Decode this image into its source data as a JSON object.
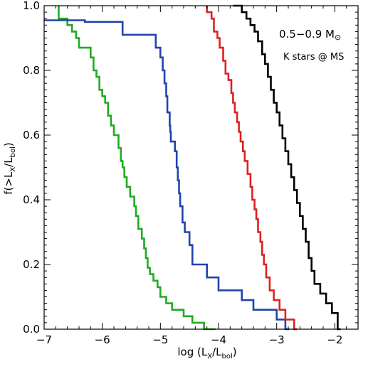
{
  "chart_data": {
    "type": "line",
    "title": "",
    "xlabel": {
      "prefix": "log (L",
      "sub1": "X",
      "mid": "/L",
      "sub2": "bol",
      "suffix": ")"
    },
    "ylabel": {
      "prefix": "f(>L",
      "sub1": "X",
      "mid": "/L",
      "sub2": "bol",
      "suffix": ")"
    },
    "xlim": [
      -7.0,
      -1.6
    ],
    "ylim": [
      0.0,
      1.0
    ],
    "x_ticks": [
      -7,
      -6,
      -5,
      -4,
      -3,
      -2
    ],
    "x_tick_labels": [
      "−7",
      "−6",
      "−5",
      "−4",
      "−3",
      "−2"
    ],
    "y_ticks": [
      0.0,
      0.2,
      0.4,
      0.6,
      0.8,
      1.0
    ],
    "y_tick_labels": [
      "0.0",
      "0.2",
      "0.4",
      "0.6",
      "0.8",
      "1.0"
    ],
    "grid": false,
    "annotations": {
      "mass_range": "0.5−0.9 M",
      "sun_symbol": "⊙",
      "stage": "K stars @ MS"
    },
    "series": [
      {
        "color": "#22aa22",
        "points": [
          [
            -6.75,
            1.0
          ],
          [
            -6.75,
            0.96
          ],
          [
            -6.6,
            0.96
          ],
          [
            -6.6,
            0.94
          ],
          [
            -6.52,
            0.94
          ],
          [
            -6.52,
            0.92
          ],
          [
            -6.45,
            0.92
          ],
          [
            -6.45,
            0.9
          ],
          [
            -6.4,
            0.9
          ],
          [
            -6.4,
            0.87
          ],
          [
            -6.2,
            0.87
          ],
          [
            -6.2,
            0.84
          ],
          [
            -6.15,
            0.84
          ],
          [
            -6.15,
            0.8
          ],
          [
            -6.1,
            0.8
          ],
          [
            -6.1,
            0.78
          ],
          [
            -6.05,
            0.78
          ],
          [
            -6.05,
            0.74
          ],
          [
            -6.0,
            0.74
          ],
          [
            -6.0,
            0.72
          ],
          [
            -5.95,
            0.72
          ],
          [
            -5.95,
            0.7
          ],
          [
            -5.9,
            0.7
          ],
          [
            -5.9,
            0.66
          ],
          [
            -5.85,
            0.66
          ],
          [
            -5.85,
            0.63
          ],
          [
            -5.8,
            0.63
          ],
          [
            -5.8,
            0.6
          ],
          [
            -5.72,
            0.6
          ],
          [
            -5.72,
            0.58
          ],
          [
            -5.72,
            0.56
          ],
          [
            -5.68,
            0.56
          ],
          [
            -5.68,
            0.52
          ],
          [
            -5.65,
            0.52
          ],
          [
            -5.65,
            0.5
          ],
          [
            -5.62,
            0.5
          ],
          [
            -5.62,
            0.47
          ],
          [
            -5.58,
            0.47
          ],
          [
            -5.58,
            0.44
          ],
          [
            -5.52,
            0.44
          ],
          [
            -5.52,
            0.41
          ],
          [
            -5.45,
            0.41
          ],
          [
            -5.45,
            0.38
          ],
          [
            -5.42,
            0.38
          ],
          [
            -5.42,
            0.35
          ],
          [
            -5.38,
            0.35
          ],
          [
            -5.38,
            0.31
          ],
          [
            -5.32,
            0.31
          ],
          [
            -5.32,
            0.28
          ],
          [
            -5.28,
            0.28
          ],
          [
            -5.28,
            0.25
          ],
          [
            -5.25,
            0.25
          ],
          [
            -5.25,
            0.22
          ],
          [
            -5.22,
            0.22
          ],
          [
            -5.22,
            0.19
          ],
          [
            -5.18,
            0.19
          ],
          [
            -5.18,
            0.17
          ],
          [
            -5.12,
            0.17
          ],
          [
            -5.12,
            0.15
          ],
          [
            -5.05,
            0.15
          ],
          [
            -5.05,
            0.13
          ],
          [
            -5.0,
            0.13
          ],
          [
            -5.0,
            0.1
          ],
          [
            -4.9,
            0.1
          ],
          [
            -4.9,
            0.08
          ],
          [
            -4.8,
            0.08
          ],
          [
            -4.8,
            0.06
          ],
          [
            -4.6,
            0.06
          ],
          [
            -4.6,
            0.04
          ],
          [
            -4.45,
            0.04
          ],
          [
            -4.45,
            0.02
          ],
          [
            -4.25,
            0.02
          ],
          [
            -4.25,
            0.0
          ],
          [
            -4.05,
            0.0
          ]
        ]
      },
      {
        "color": "#2244aa",
        "points": [
          [
            -7.0,
            0.955
          ],
          [
            -6.3,
            0.955
          ],
          [
            -6.3,
            0.95
          ],
          [
            -5.65,
            0.95
          ],
          [
            -5.65,
            0.91
          ],
          [
            -5.08,
            0.91
          ],
          [
            -5.08,
            0.87
          ],
          [
            -5.0,
            0.87
          ],
          [
            -5.0,
            0.84
          ],
          [
            -4.96,
            0.84
          ],
          [
            -4.96,
            0.8
          ],
          [
            -4.93,
            0.8
          ],
          [
            -4.93,
            0.76
          ],
          [
            -4.9,
            0.76
          ],
          [
            -4.9,
            0.72
          ],
          [
            -4.88,
            0.72
          ],
          [
            -4.88,
            0.67
          ],
          [
            -4.84,
            0.67
          ],
          [
            -4.84,
            0.63
          ],
          [
            -4.83,
            0.63
          ],
          [
            -4.83,
            0.61
          ],
          [
            -4.82,
            0.61
          ],
          [
            -4.82,
            0.58
          ],
          [
            -4.75,
            0.58
          ],
          [
            -4.75,
            0.55
          ],
          [
            -4.72,
            0.55
          ],
          [
            -4.72,
            0.5
          ],
          [
            -4.7,
            0.5
          ],
          [
            -4.7,
            0.46
          ],
          [
            -4.68,
            0.46
          ],
          [
            -4.68,
            0.42
          ],
          [
            -4.66,
            0.42
          ],
          [
            -4.66,
            0.38
          ],
          [
            -4.62,
            0.38
          ],
          [
            -4.62,
            0.33
          ],
          [
            -4.58,
            0.33
          ],
          [
            -4.58,
            0.3
          ],
          [
            -4.5,
            0.3
          ],
          [
            -4.5,
            0.26
          ],
          [
            -4.45,
            0.26
          ],
          [
            -4.45,
            0.2
          ],
          [
            -4.2,
            0.2
          ],
          [
            -4.2,
            0.16
          ],
          [
            -4.0,
            0.16
          ],
          [
            -4.0,
            0.12
          ],
          [
            -3.6,
            0.12
          ],
          [
            -3.6,
            0.09
          ],
          [
            -3.4,
            0.09
          ],
          [
            -3.4,
            0.06
          ],
          [
            -3.0,
            0.06
          ],
          [
            -3.0,
            0.03
          ],
          [
            -2.85,
            0.03
          ],
          [
            -2.85,
            0.0
          ],
          [
            -2.78,
            0.0
          ]
        ]
      },
      {
        "color": "#dd2222",
        "points": [
          [
            -4.2,
            1.0
          ],
          [
            -4.2,
            0.98
          ],
          [
            -4.12,
            0.98
          ],
          [
            -4.12,
            0.96
          ],
          [
            -4.08,
            0.96
          ],
          [
            -4.08,
            0.92
          ],
          [
            -4.02,
            0.92
          ],
          [
            -4.02,
            0.9
          ],
          [
            -3.98,
            0.9
          ],
          [
            -3.98,
            0.87
          ],
          [
            -3.92,
            0.87
          ],
          [
            -3.92,
            0.83
          ],
          [
            -3.88,
            0.83
          ],
          [
            -3.88,
            0.79
          ],
          [
            -3.83,
            0.79
          ],
          [
            -3.83,
            0.77
          ],
          [
            -3.78,
            0.77
          ],
          [
            -3.78,
            0.73
          ],
          [
            -3.75,
            0.73
          ],
          [
            -3.75,
            0.7
          ],
          [
            -3.72,
            0.7
          ],
          [
            -3.72,
            0.67
          ],
          [
            -3.68,
            0.67
          ],
          [
            -3.68,
            0.64
          ],
          [
            -3.65,
            0.64
          ],
          [
            -3.65,
            0.61
          ],
          [
            -3.62,
            0.61
          ],
          [
            -3.62,
            0.58
          ],
          [
            -3.58,
            0.58
          ],
          [
            -3.58,
            0.55
          ],
          [
            -3.55,
            0.55
          ],
          [
            -3.55,
            0.52
          ],
          [
            -3.5,
            0.52
          ],
          [
            -3.5,
            0.48
          ],
          [
            -3.45,
            0.48
          ],
          [
            -3.45,
            0.44
          ],
          [
            -3.42,
            0.44
          ],
          [
            -3.42,
            0.4
          ],
          [
            -3.38,
            0.4
          ],
          [
            -3.38,
            0.37
          ],
          [
            -3.35,
            0.37
          ],
          [
            -3.35,
            0.34
          ],
          [
            -3.32,
            0.34
          ],
          [
            -3.32,
            0.3
          ],
          [
            -3.28,
            0.3
          ],
          [
            -3.28,
            0.27
          ],
          [
            -3.25,
            0.27
          ],
          [
            -3.25,
            0.23
          ],
          [
            -3.22,
            0.23
          ],
          [
            -3.22,
            0.2
          ],
          [
            -3.18,
            0.2
          ],
          [
            -3.18,
            0.16
          ],
          [
            -3.12,
            0.16
          ],
          [
            -3.12,
            0.12
          ],
          [
            -3.05,
            0.12
          ],
          [
            -3.05,
            0.09
          ],
          [
            -2.95,
            0.09
          ],
          [
            -2.95,
            0.06
          ],
          [
            -2.85,
            0.06
          ],
          [
            -2.85,
            0.03
          ],
          [
            -2.7,
            0.03
          ],
          [
            -2.7,
            0.0
          ],
          [
            -2.65,
            0.0
          ]
        ]
      },
      {
        "color": "#000000",
        "points": [
          [
            -3.75,
            1.0
          ],
          [
            -3.6,
            1.0
          ],
          [
            -3.6,
            0.98
          ],
          [
            -3.52,
            0.98
          ],
          [
            -3.52,
            0.96
          ],
          [
            -3.45,
            0.96
          ],
          [
            -3.45,
            0.94
          ],
          [
            -3.38,
            0.94
          ],
          [
            -3.38,
            0.92
          ],
          [
            -3.32,
            0.92
          ],
          [
            -3.32,
            0.89
          ],
          [
            -3.25,
            0.89
          ],
          [
            -3.25,
            0.85
          ],
          [
            -3.2,
            0.85
          ],
          [
            -3.2,
            0.82
          ],
          [
            -3.15,
            0.82
          ],
          [
            -3.15,
            0.78
          ],
          [
            -3.1,
            0.78
          ],
          [
            -3.1,
            0.74
          ],
          [
            -3.05,
            0.74
          ],
          [
            -3.05,
            0.7
          ],
          [
            -3.0,
            0.7
          ],
          [
            -3.0,
            0.67
          ],
          [
            -2.95,
            0.67
          ],
          [
            -2.95,
            0.63
          ],
          [
            -2.9,
            0.63
          ],
          [
            -2.9,
            0.59
          ],
          [
            -2.85,
            0.59
          ],
          [
            -2.85,
            0.55
          ],
          [
            -2.8,
            0.55
          ],
          [
            -2.8,
            0.51
          ],
          [
            -2.75,
            0.51
          ],
          [
            -2.75,
            0.47
          ],
          [
            -2.7,
            0.47
          ],
          [
            -2.7,
            0.43
          ],
          [
            -2.65,
            0.43
          ],
          [
            -2.65,
            0.39
          ],
          [
            -2.6,
            0.39
          ],
          [
            -2.6,
            0.35
          ],
          [
            -2.55,
            0.35
          ],
          [
            -2.55,
            0.31
          ],
          [
            -2.5,
            0.31
          ],
          [
            -2.5,
            0.27
          ],
          [
            -2.45,
            0.27
          ],
          [
            -2.45,
            0.22
          ],
          [
            -2.4,
            0.22
          ],
          [
            -2.4,
            0.18
          ],
          [
            -2.35,
            0.18
          ],
          [
            -2.35,
            0.14
          ],
          [
            -2.25,
            0.14
          ],
          [
            -2.25,
            0.11
          ],
          [
            -2.15,
            0.11
          ],
          [
            -2.15,
            0.08
          ],
          [
            -2.05,
            0.08
          ],
          [
            -2.05,
            0.05
          ],
          [
            -1.95,
            0.05
          ],
          [
            -1.95,
            0.02
          ],
          [
            -1.95,
            0.0
          ],
          [
            -1.9,
            0.0
          ]
        ]
      }
    ]
  }
}
